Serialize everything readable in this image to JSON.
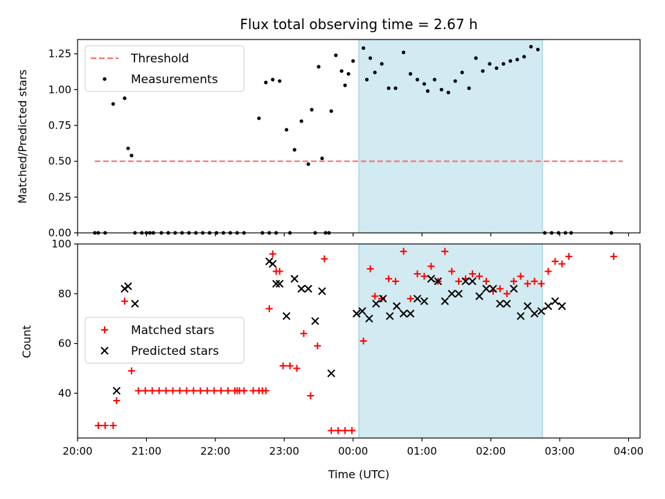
{
  "chart_data": [
    {
      "type": "scatter",
      "title": "Flux total observing time = 2.67 h",
      "xlabel": "",
      "ylabel": "Matched/Predicted stars",
      "x_unit": "UTC time",
      "xlim": [
        "20:00",
        "04:10"
      ],
      "ylim": [
        0,
        1.35
      ],
      "yticks": [
        0.0,
        0.25,
        0.5,
        0.75,
        1.0,
        1.25
      ],
      "ytick_labels": [
        "0.00",
        "0.25",
        "0.50",
        "0.75",
        "1.00",
        "1.25"
      ],
      "grid": false,
      "legend_position": "top-left",
      "shaded_span": {
        "from": "00:05",
        "to": "02:45",
        "color": "#add8e6"
      },
      "series": [
        {
          "name": "Threshold",
          "kind": "dashed-line",
          "color": "#ff6666",
          "x": [
            "20:15",
            "03:55"
          ],
          "y": [
            0.5,
            0.5
          ]
        },
        {
          "name": "Measurements",
          "kind": "dot",
          "color": "#000000",
          "x": [
            "20:15",
            "20:18",
            "20:24",
            "20:31",
            "20:41",
            "20:44",
            "20:47",
            "20:50",
            "20:56",
            "21:00",
            "21:03",
            "21:06",
            "21:13",
            "21:19",
            "21:25",
            "21:31",
            "21:37",
            "21:43",
            "21:49",
            "21:55",
            "22:01",
            "22:07",
            "22:13",
            "22:19",
            "22:25",
            "22:38",
            "22:41",
            "22:44",
            "22:47",
            "22:50",
            "22:53",
            "22:56",
            "23:02",
            "23:05",
            "23:09",
            "23:15",
            "23:21",
            "23:24",
            "23:27",
            "23:30",
            "23:33",
            "23:36",
            "23:39",
            "23:41",
            "23:45",
            "23:50",
            "23:53",
            "23:56",
            "00:00",
            "00:09",
            "00:12",
            "00:15",
            "00:19",
            "00:25",
            "00:31",
            "00:37",
            "00:44",
            "00:50",
            "00:56",
            "01:02",
            "01:05",
            "01:11",
            "01:17",
            "01:23",
            "01:29",
            "01:35",
            "01:41",
            "01:47",
            "01:53",
            "01:59",
            "02:05",
            "02:11",
            "02:17",
            "02:23",
            "02:29",
            "02:35",
            "02:41",
            "02:47",
            "02:53",
            "02:59",
            "03:05",
            "03:10",
            "03:45"
          ],
          "y": [
            0,
            0,
            0,
            0.9,
            0.94,
            0.59,
            0.54,
            0,
            0,
            0,
            0,
            0,
            0,
            0,
            0,
            0,
            0,
            0,
            0,
            0,
            0,
            0,
            0,
            0,
            0,
            0.8,
            0,
            1.05,
            0,
            1.07,
            0,
            1.06,
            0.72,
            0,
            0.58,
            0.78,
            0.48,
            0.86,
            0,
            1.16,
            0.52,
            0,
            0,
            0.85,
            1.24,
            1.13,
            1.03,
            1.11,
            1.2,
            1.29,
            1.07,
            1.22,
            1.12,
            1.18,
            1.01,
            1.01,
            1.26,
            1.11,
            1.07,
            1.04,
            0.99,
            1.07,
            1.0,
            0.98,
            1.06,
            1.12,
            1.01,
            1.22,
            1.13,
            1.18,
            1.15,
            1.18,
            1.2,
            1.21,
            1.23,
            1.3,
            1.28,
            0,
            0,
            0,
            0,
            0,
            0
          ]
        }
      ]
    },
    {
      "type": "scatter",
      "title": "",
      "xlabel": "Time (UTC)",
      "ylabel": "Count",
      "xlim": [
        "20:00",
        "04:10"
      ],
      "ylim": [
        22,
        100
      ],
      "yticks": [
        40,
        60,
        80,
        100
      ],
      "ytick_labels": [
        "40",
        "60",
        "80",
        "100"
      ],
      "xticks": [
        "20:00",
        "21:00",
        "22:00",
        "23:00",
        "00:00",
        "01:00",
        "02:00",
        "03:00",
        "04:00"
      ],
      "grid": false,
      "legend_position": "center-left",
      "shaded_span": {
        "from": "00:05",
        "to": "02:45",
        "color": "#add8e6"
      },
      "series": [
        {
          "name": "Matched stars",
          "marker": "plus",
          "color": "#ff0000",
          "x": [
            "20:18",
            "20:24",
            "20:31",
            "20:34",
            "20:41",
            "20:47",
            "20:53",
            "20:59",
            "21:05",
            "21:11",
            "21:17",
            "21:23",
            "21:29",
            "21:35",
            "21:41",
            "21:47",
            "21:53",
            "21:59",
            "22:05",
            "22:11",
            "22:17",
            "22:19",
            "22:21",
            "22:25",
            "22:33",
            "22:38",
            "22:41",
            "22:44",
            "22:47",
            "22:50",
            "22:53",
            "22:56",
            "22:59",
            "23:05",
            "23:11",
            "23:17",
            "23:23",
            "23:29",
            "23:35",
            "23:41",
            "23:47",
            "23:53",
            "23:59",
            "00:09",
            "00:15",
            "00:19",
            "00:25",
            "00:31",
            "00:37",
            "00:44",
            "00:50",
            "00:56",
            "01:02",
            "01:08",
            "01:14",
            "01:20",
            "01:26",
            "01:32",
            "01:38",
            "01:44",
            "01:50",
            "01:56",
            "02:02",
            "02:08",
            "02:14",
            "02:20",
            "02:26",
            "02:32",
            "02:38",
            "02:44",
            "02:50",
            "02:56",
            "03:02",
            "03:08",
            "03:47"
          ],
          "y": [
            27,
            27,
            27,
            37,
            77,
            49,
            41,
            41,
            41,
            41,
            41,
            41,
            41,
            41,
            41,
            41,
            41,
            41,
            41,
            41,
            41,
            41,
            41,
            41,
            41,
            41,
            41,
            41,
            74,
            96,
            89,
            89,
            51,
            51,
            50,
            64,
            39,
            59,
            94,
            25,
            25,
            25,
            25,
            61,
            90,
            79,
            78,
            86,
            85,
            97,
            78,
            88,
            87,
            91,
            85,
            97,
            89,
            85,
            86,
            88,
            87,
            85,
            81,
            82,
            80,
            85,
            87,
            84,
            85,
            84,
            89,
            93,
            92,
            95,
            95
          ]
        },
        {
          "name": "Predicted stars",
          "marker": "x",
          "color": "#000000",
          "x": [
            "20:34",
            "20:41",
            "20:44",
            "20:50",
            "22:47",
            "22:50",
            "22:53",
            "22:56",
            "23:02",
            "23:09",
            "23:15",
            "23:21",
            "23:27",
            "23:33",
            "23:41",
            "00:03",
            "00:08",
            "00:14",
            "00:20",
            "00:26",
            "00:32",
            "00:38",
            "00:44",
            "00:50",
            "00:56",
            "01:02",
            "01:08",
            "01:14",
            "01:20",
            "01:26",
            "01:32",
            "01:38",
            "01:44",
            "01:50",
            "01:56",
            "02:02",
            "02:08",
            "02:14",
            "02:20",
            "02:26",
            "02:32",
            "02:38",
            "02:44",
            "02:50",
            "02:56",
            "03:02"
          ],
          "y": [
            41,
            82,
            83,
            76,
            93,
            92,
            84,
            84,
            71,
            86,
            82,
            82,
            69,
            81,
            48,
            72,
            73,
            70,
            76,
            78,
            71,
            75,
            72,
            72,
            78,
            77,
            86,
            85,
            77,
            80,
            80,
            85,
            85,
            79,
            82,
            82,
            76,
            76,
            82,
            71,
            75,
            72,
            73,
            75,
            77,
            75
          ]
        }
      ]
    }
  ]
}
